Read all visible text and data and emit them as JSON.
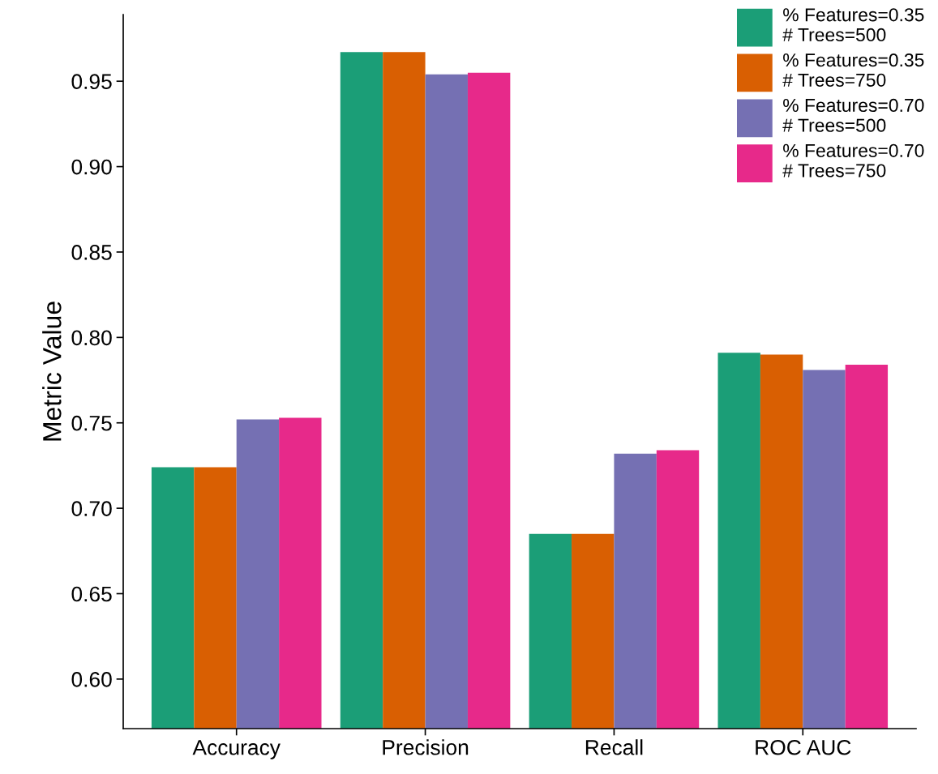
{
  "chart_data": {
    "type": "bar",
    "ylabel": "Metric Value",
    "categories": [
      "Accuracy",
      "Precision",
      "Recall",
      "ROC AUC"
    ],
    "series": [
      {
        "name": "% Features=0.35\n# Trees=500",
        "color": "#1b9e77",
        "values": [
          0.724,
          0.967,
          0.685,
          0.791
        ]
      },
      {
        "name": "% Features=0.35\n# Trees=750",
        "color": "#d95f02",
        "values": [
          0.724,
          0.967,
          0.685,
          0.79
        ]
      },
      {
        "name": "% Features=0.70\n# Trees=500",
        "color": "#7570b3",
        "values": [
          0.752,
          0.954,
          0.732,
          0.781
        ]
      },
      {
        "name": "% Features=0.70\n# Trees=750",
        "color": "#e7298a",
        "values": [
          0.753,
          0.955,
          0.734,
          0.784
        ]
      }
    ],
    "ylim": [
      0.571,
      0.989
    ],
    "yticks": [
      {
        "value": 0.6,
        "label": "0.60"
      },
      {
        "value": 0.65,
        "label": "0.65"
      },
      {
        "value": 0.7,
        "label": "0.70"
      },
      {
        "value": 0.75,
        "label": "0.75"
      },
      {
        "value": 0.8,
        "label": "0.80"
      },
      {
        "value": 0.85,
        "label": "0.85"
      },
      {
        "value": 0.9,
        "label": "0.90"
      },
      {
        "value": 0.95,
        "label": "0.95"
      }
    ],
    "legend": "top right",
    "grid": false
  }
}
